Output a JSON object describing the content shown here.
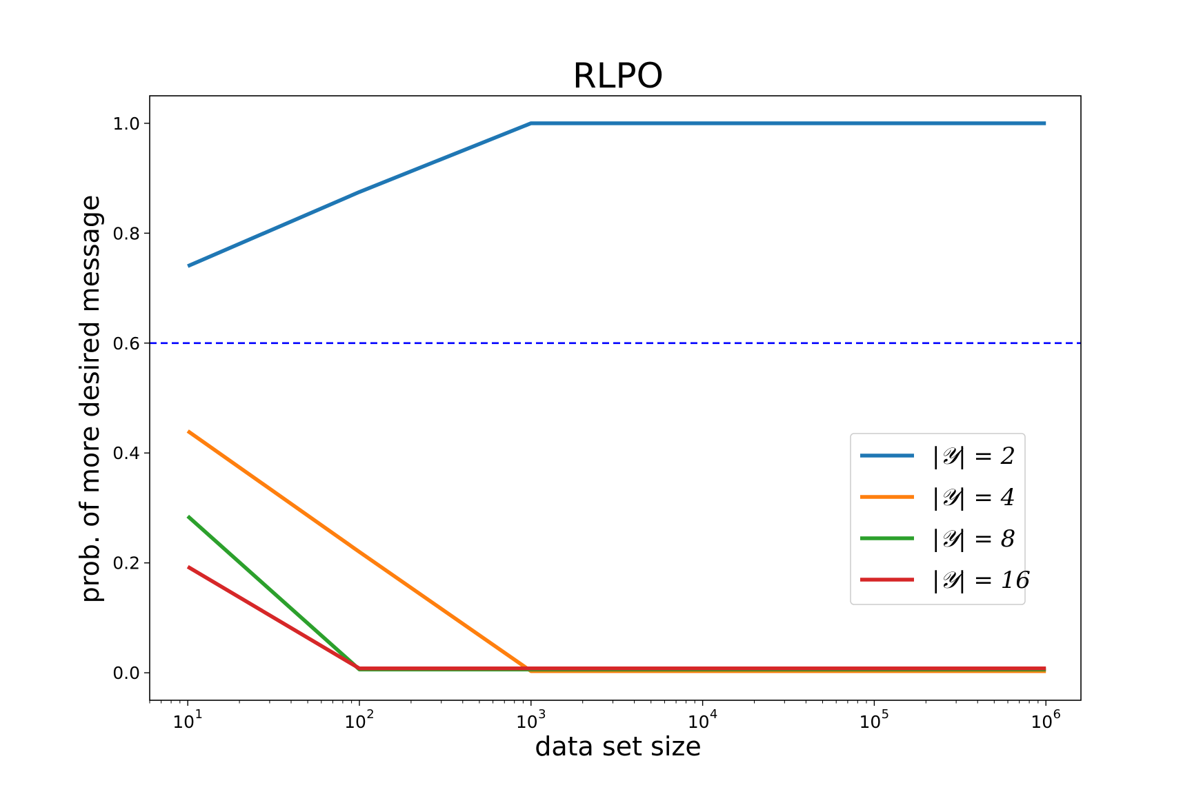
{
  "chart_data": {
    "type": "line",
    "title": "RLPO",
    "xlabel": "data set size",
    "ylabel": "prob. of more desired message",
    "xscale": "log",
    "xlim": [
      6,
      1600000.0
    ],
    "ylim": [
      -0.05,
      1.05
    ],
    "grid": false,
    "legend_position": "center-right",
    "x": [
      10,
      100,
      1000,
      10000,
      100000,
      1000000
    ],
    "x_ticks": [
      {
        "value": 10,
        "base": "10",
        "exp": "1"
      },
      {
        "value": 100,
        "base": "10",
        "exp": "2"
      },
      {
        "value": 1000,
        "base": "10",
        "exp": "3"
      },
      {
        "value": 10000,
        "base": "10",
        "exp": "4"
      },
      {
        "value": 100000,
        "base": "10",
        "exp": "5"
      },
      {
        "value": 1000000,
        "base": "10",
        "exp": "6"
      }
    ],
    "y_ticks": [
      {
        "value": 0.0,
        "label": "0.0"
      },
      {
        "value": 0.2,
        "label": "0.2"
      },
      {
        "value": 0.4,
        "label": "0.4"
      },
      {
        "value": 0.6,
        "label": "0.6"
      },
      {
        "value": 0.8,
        "label": "0.8"
      },
      {
        "value": 1.0,
        "label": "1.0"
      }
    ],
    "reference_line": {
      "y": 0.6,
      "color": "#0000ff",
      "style": "dashed"
    },
    "series": [
      {
        "name": "|𝒴| = 2",
        "color": "#1f77b4",
        "values": [
          0.74,
          0.875,
          1.0,
          1.0,
          1.0,
          1.0
        ]
      },
      {
        "name": "|𝒴| = 4",
        "color": "#ff7f0e",
        "values": [
          0.44,
          0.22,
          0.003,
          0.003,
          0.003,
          0.003
        ]
      },
      {
        "name": "|𝒴| = 8",
        "color": "#2ca02c",
        "values": [
          0.285,
          0.006,
          0.006,
          0.006,
          0.006,
          0.006
        ]
      },
      {
        "name": "|𝒴| = 16",
        "color": "#d62728",
        "values": [
          0.193,
          0.008,
          0.008,
          0.008,
          0.008,
          0.008
        ]
      }
    ]
  }
}
